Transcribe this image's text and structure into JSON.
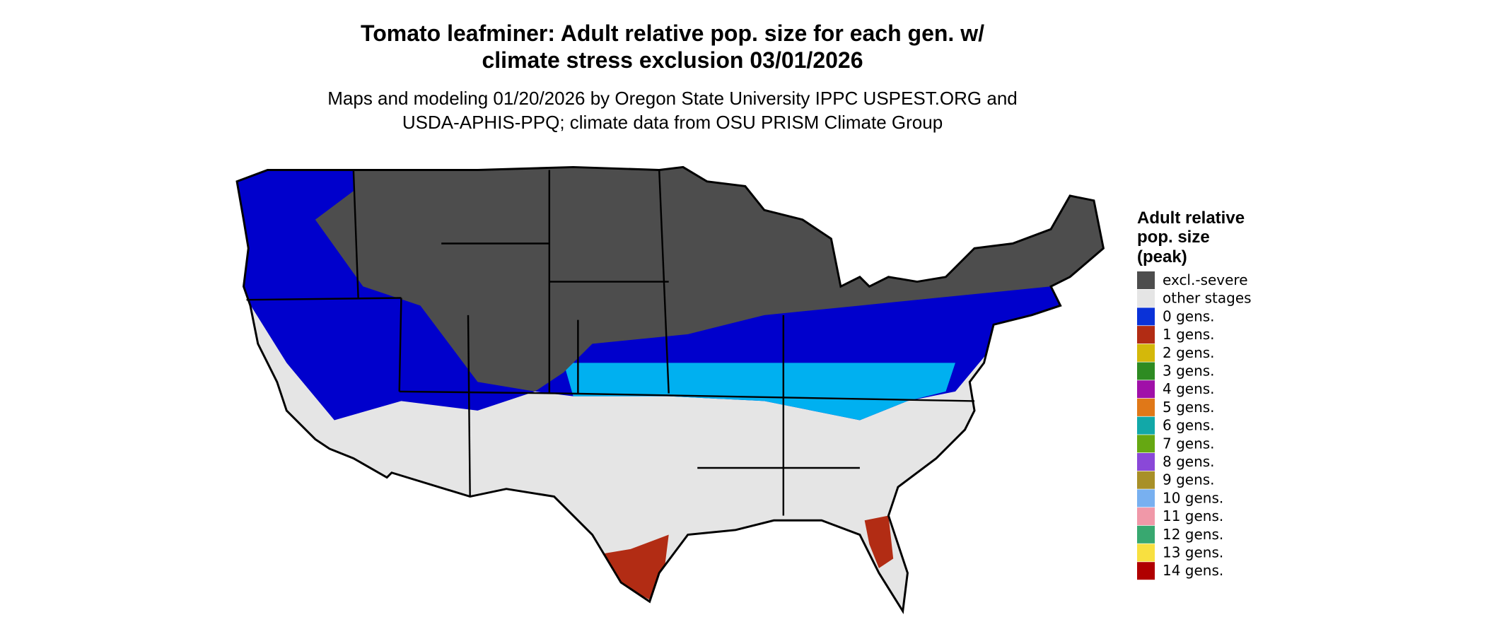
{
  "header": {
    "title_lines": [
      "Tomato leafminer: Adult relative pop. size for each gen. w/",
      "climate stress exclusion 03/01/2026"
    ],
    "subtitle_lines": [
      "Maps and modeling 01/20/2026 by Oregon State University IPPC USPEST.ORG and",
      "USDA-APHIS-PPQ; climate data from OSU PRISM Climate Group"
    ]
  },
  "legend": {
    "title_lines": [
      "Adult relative",
      "pop. size",
      "(peak)"
    ],
    "items": [
      {
        "label": "excl.-severe",
        "color": "#4d4d4d"
      },
      {
        "label": "other stages",
        "color": "#e5e5e5"
      },
      {
        "label": "0 gens.",
        "color": "#0a32d8"
      },
      {
        "label": "1 gens.",
        "color": "#b22c14"
      },
      {
        "label": "2 gens.",
        "color": "#d4b80a"
      },
      {
        "label": "3 gens.",
        "color": "#2e8b22"
      },
      {
        "label": "4 gens.",
        "color": "#a010a8"
      },
      {
        "label": "5 gens.",
        "color": "#e07818"
      },
      {
        "label": "6 gens.",
        "color": "#12a8a8"
      },
      {
        "label": "7 gens.",
        "color": "#66a812"
      },
      {
        "label": "8 gens.",
        "color": "#8a48d8"
      },
      {
        "label": "9 gens.",
        "color": "#a89028"
      },
      {
        "label": "10 gens.",
        "color": "#78b0f0"
      },
      {
        "label": "11 gens.",
        "color": "#f098a8"
      },
      {
        "label": "12 gens.",
        "color": "#38a870"
      },
      {
        "label": "13 gens.",
        "color": "#f8e040"
      },
      {
        "label": "14 gens.",
        "color": "#b00000"
      }
    ]
  }
}
